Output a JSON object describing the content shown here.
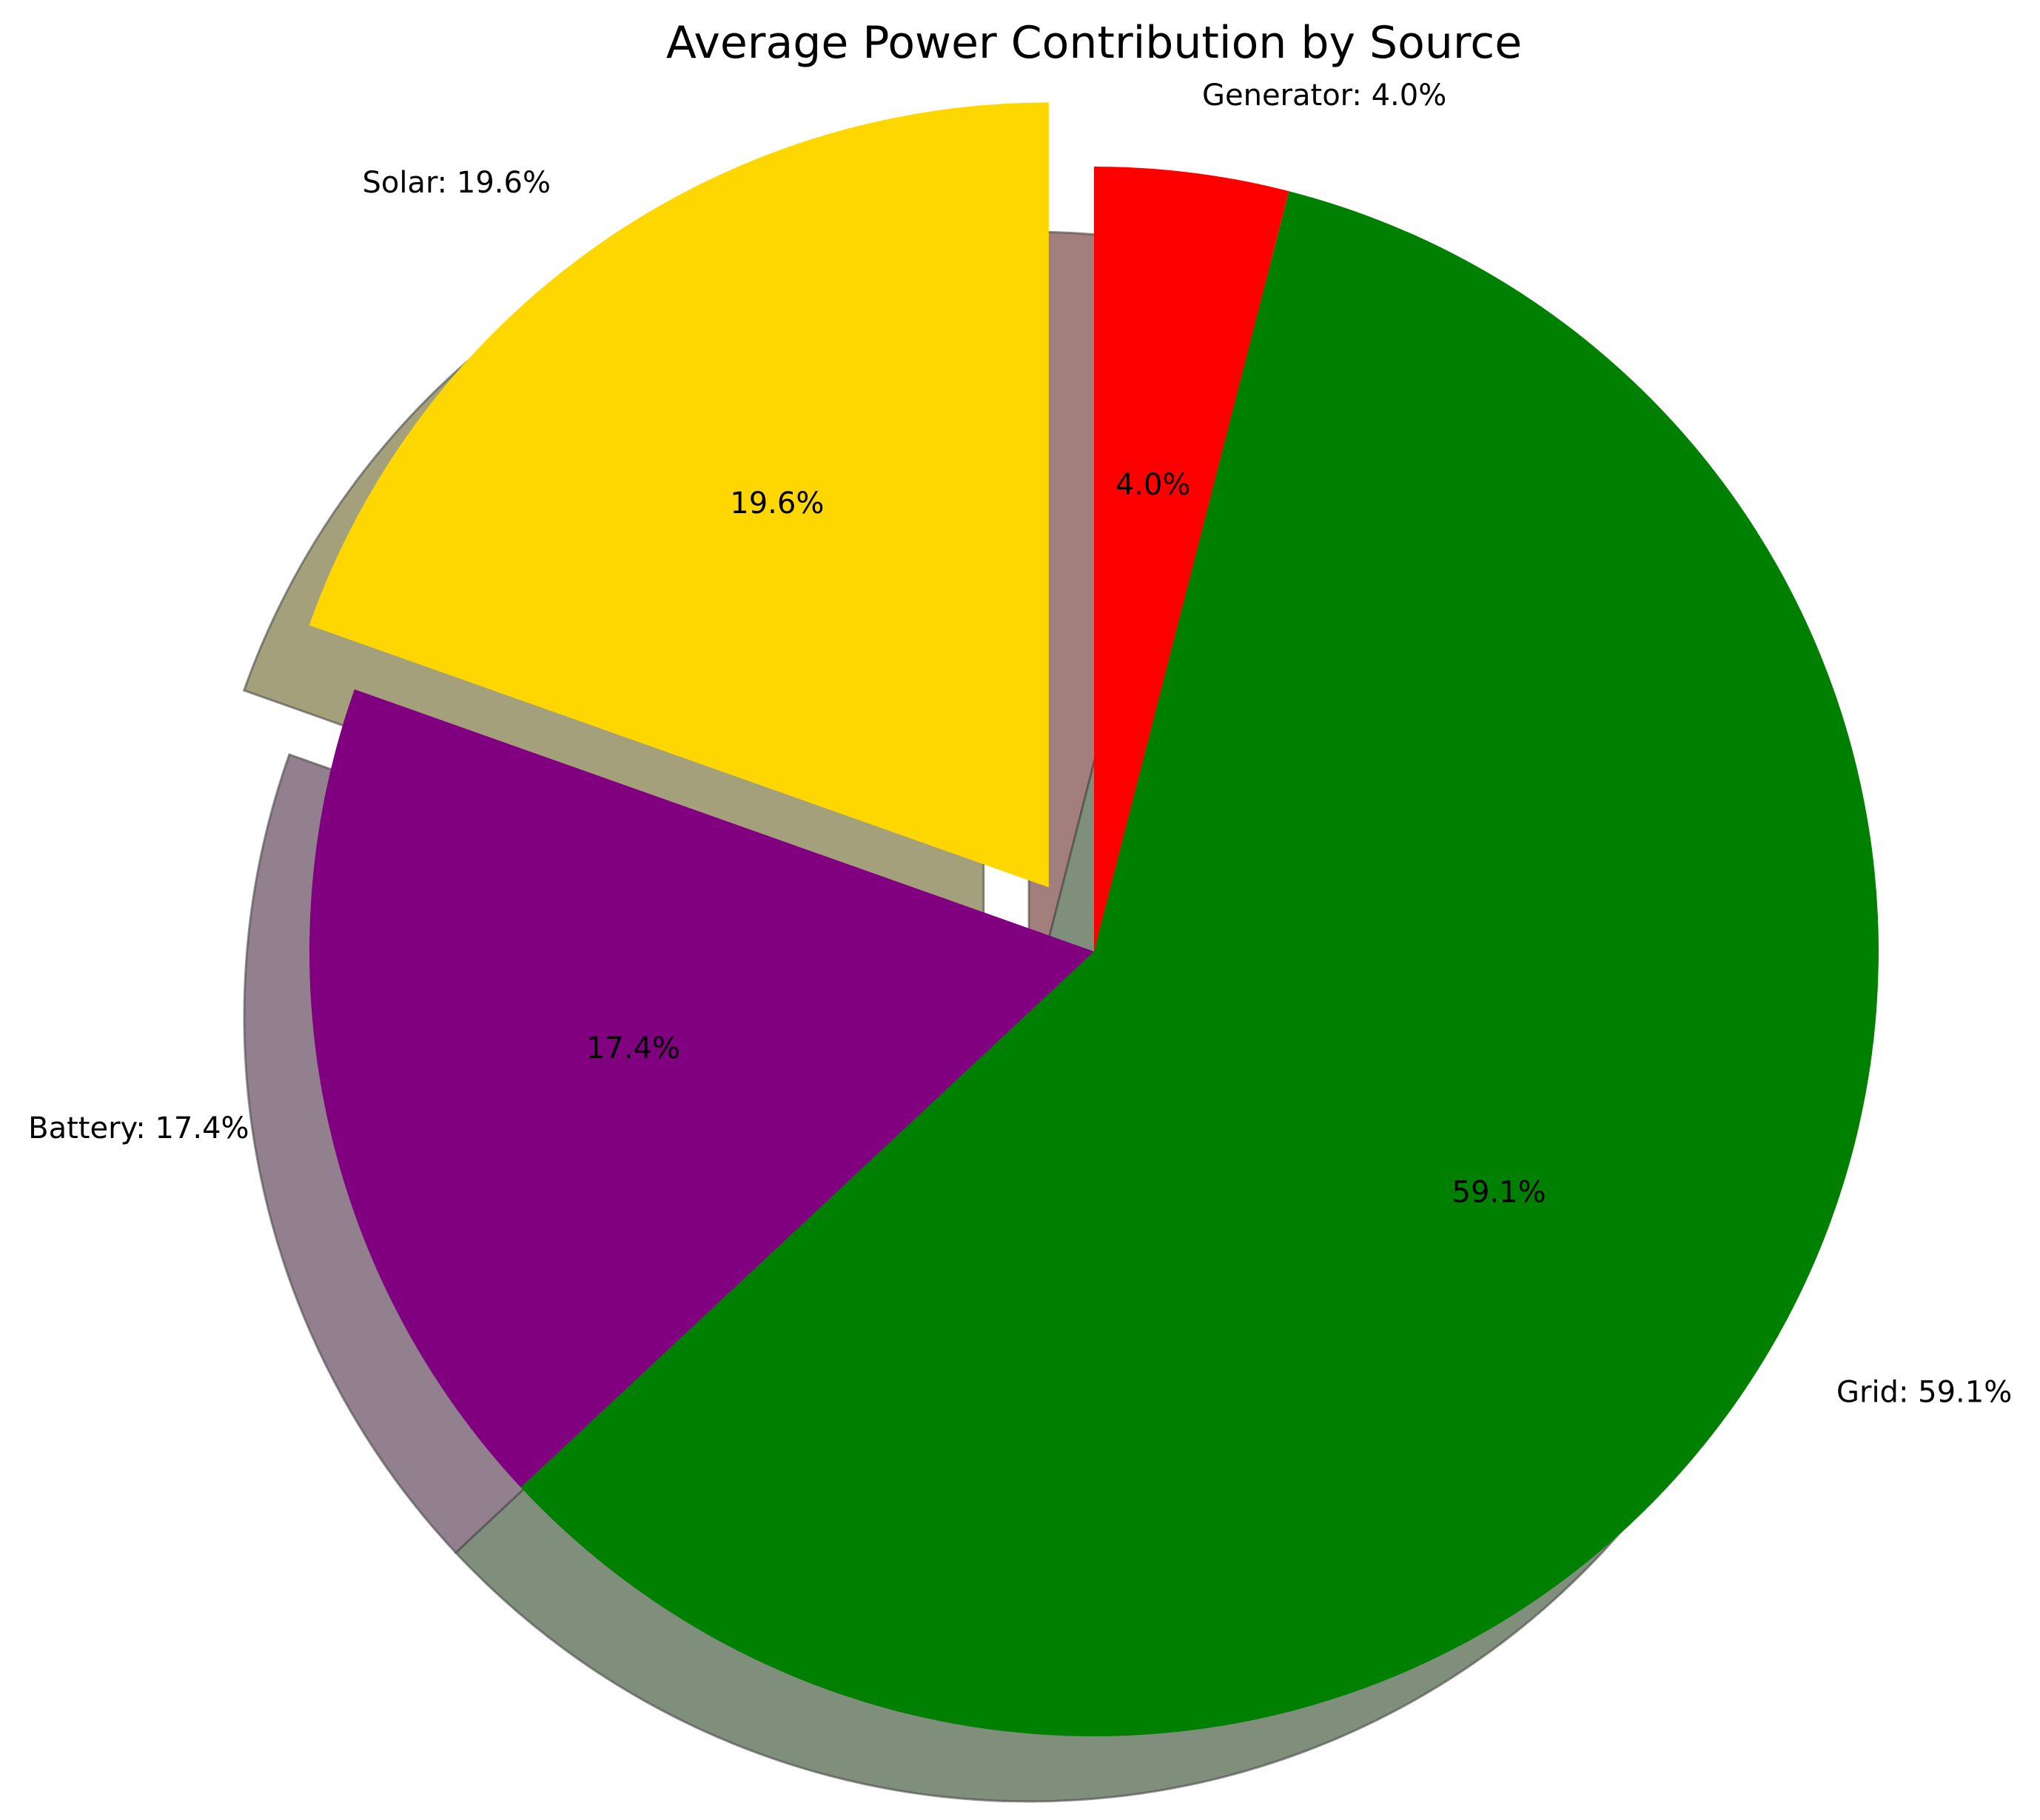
{
  "chart_data": {
    "type": "pie",
    "title": "Average Power Contribution by Source",
    "slices": [
      {
        "name": "Generator",
        "value": 4.0,
        "percent_label": "4.0%",
        "outer_label": "Generator: 4.0%",
        "color": "#ff0000",
        "shadow_color": "#a27e7c",
        "exploded": false
      },
      {
        "name": "Grid",
        "value": 59.1,
        "percent_label": "59.1%",
        "outer_label": "Grid: 59.1%",
        "color": "#008000",
        "shadow_color": "#7f8f7c",
        "exploded": false
      },
      {
        "name": "Battery",
        "value": 17.4,
        "percent_label": "17.4%",
        "outer_label": "Battery: 17.4%",
        "color": "#800080",
        "shadow_color": "#93808f",
        "exploded": false
      },
      {
        "name": "Solar",
        "value": 19.6,
        "percent_label": "19.6%",
        "outer_label": "Solar: 19.6%",
        "color": "#ffd700",
        "shadow_color": "#a5a07c",
        "exploded": true
      }
    ],
    "start_angle_deg": 90,
    "direction": "clockwise",
    "shadow": true,
    "legend": "none"
  }
}
